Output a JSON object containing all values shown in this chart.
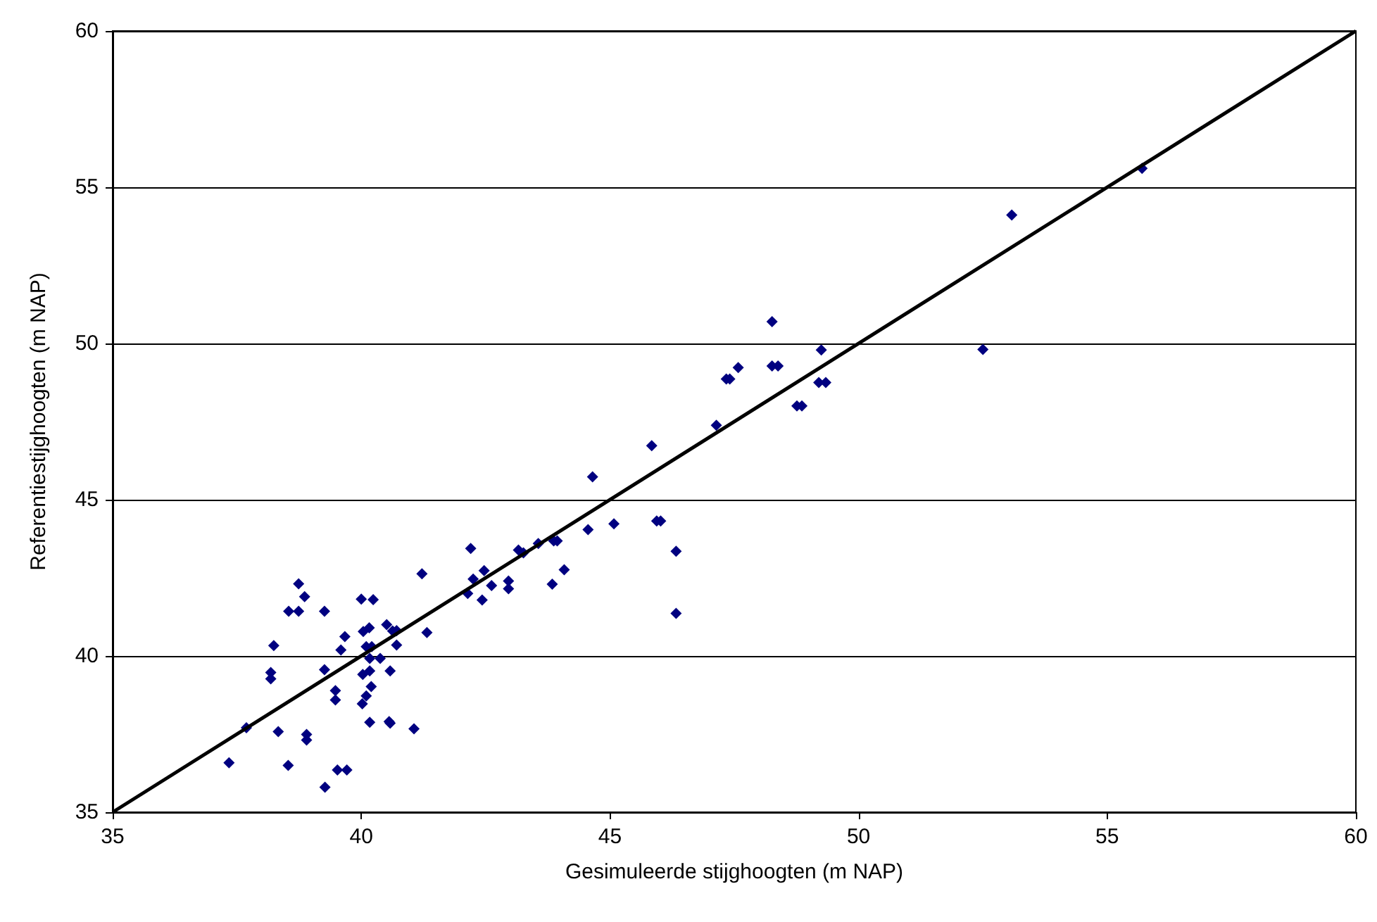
{
  "chart_data": {
    "type": "scatter",
    "xlabel": "Gesimuleerde stijghoogten (m NAP)",
    "ylabel": "Referentiestijghoogten (m NAP)",
    "xlim": [
      35,
      60
    ],
    "ylim": [
      35,
      60
    ],
    "xticks": [
      35,
      40,
      45,
      50,
      55,
      60
    ],
    "yticks": [
      35,
      40,
      45,
      50,
      55,
      60
    ],
    "grid": "y",
    "marker": "diamond",
    "series": [
      {
        "color": "#000080",
        "x": [
          55.7,
          53.08,
          52.5,
          48.26,
          49.25,
          48.26,
          48.38,
          47.58,
          47.34,
          47.41,
          49.2,
          49.34,
          48.76,
          48.86,
          47.14,
          45.84,
          44.65,
          45.08,
          45.94,
          46.02,
          44.56,
          46.33,
          46.33,
          43.87,
          43.94,
          43.56,
          43.16,
          43.26,
          44.08,
          43.84,
          42.2,
          41.22,
          42.47,
          42.25,
          42.62,
          42.96,
          42.96,
          42.14,
          42.43,
          40.71,
          41.32,
          38.74,
          38.86,
          38.54,
          38.74,
          39.26,
          40.0,
          40.24,
          38.24,
          39.67,
          39.59,
          40.04,
          40.16,
          40.51,
          40.63,
          40.1,
          40.21,
          40.71,
          40.17,
          40.38,
          39.26,
          38.18,
          38.18,
          40.03,
          40.17,
          40.58,
          40.2,
          39.48,
          39.48,
          40.1,
          40.02,
          37.69,
          38.33,
          38.9,
          38.9,
          40.17,
          40.56,
          40.58,
          41.06,
          37.34,
          38.53,
          39.52,
          39.71,
          39.27
        ],
        "values": [
          55.6,
          54.11,
          49.81,
          50.7,
          49.79,
          49.28,
          49.28,
          49.23,
          48.86,
          48.86,
          48.75,
          48.75,
          48.0,
          48.0,
          47.38,
          46.73,
          45.73,
          44.23,
          44.32,
          44.32,
          44.04,
          43.35,
          41.36,
          43.68,
          43.68,
          43.6,
          43.39,
          43.3,
          42.76,
          42.3,
          43.44,
          42.63,
          42.73,
          42.46,
          42.25,
          42.4,
          42.15,
          42.0,
          41.79,
          40.81,
          40.75,
          42.31,
          41.9,
          41.43,
          41.43,
          41.43,
          41.82,
          41.8,
          40.33,
          40.62,
          40.19,
          40.78,
          40.9,
          41.0,
          40.8,
          40.3,
          40.3,
          40.35,
          39.92,
          39.92,
          39.56,
          39.47,
          39.27,
          39.41,
          39.52,
          39.52,
          39.02,
          38.89,
          38.59,
          38.72,
          38.47,
          37.7,
          37.58,
          37.49,
          37.31,
          37.88,
          37.9,
          37.85,
          37.67,
          36.58,
          36.5,
          36.35,
          36.35,
          35.8
        ]
      },
      {
        "type": "line",
        "color": "#000000",
        "marker": "none",
        "x": [
          35,
          60
        ],
        "values": [
          35,
          60
        ]
      }
    ]
  }
}
